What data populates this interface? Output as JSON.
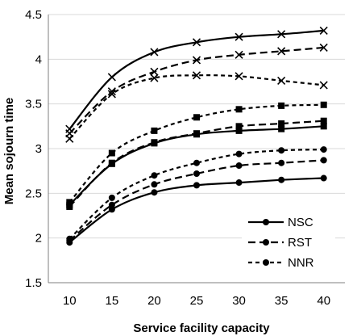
{
  "chart_data": {
    "type": "line",
    "xlabel": "Service facility capacity",
    "ylabel": "Mean sojourn time",
    "x": [
      10,
      15,
      20,
      25,
      30,
      35,
      40
    ],
    "xlim": [
      7.5,
      42.5
    ],
    "ylim": [
      1.5,
      4.5
    ],
    "yticks": [
      "1.5",
      "2",
      "2.5",
      "3",
      "3.5",
      "4",
      "4.5"
    ],
    "xticks": [
      "10",
      "15",
      "20",
      "25",
      "30",
      "35",
      "40"
    ],
    "grid": "horizontal",
    "legend_position": "bottom-right",
    "legend": [
      {
        "label": "NSC",
        "style": "solid"
      },
      {
        "label": "RST",
        "style": "dashed"
      },
      {
        "label": "NNR",
        "style": "dotted"
      }
    ],
    "series": [
      {
        "style": "solid",
        "marker": "circle",
        "values": [
          1.95,
          2.32,
          2.51,
          2.59,
          2.62,
          2.65,
          2.67
        ]
      },
      {
        "style": "dashed",
        "marker": "circle",
        "values": [
          1.97,
          2.37,
          2.6,
          2.72,
          2.81,
          2.84,
          2.87
        ]
      },
      {
        "style": "dotted",
        "marker": "circle",
        "values": [
          1.99,
          2.45,
          2.7,
          2.84,
          2.94,
          2.98,
          2.99
        ]
      },
      {
        "style": "solid",
        "marker": "square",
        "values": [
          2.37,
          2.83,
          3.06,
          3.16,
          3.2,
          3.22,
          3.25
        ]
      },
      {
        "style": "dashed",
        "marker": "square",
        "values": [
          2.35,
          2.84,
          3.07,
          3.17,
          3.25,
          3.28,
          3.31
        ]
      },
      {
        "style": "dotted",
        "marker": "square",
        "values": [
          2.4,
          2.95,
          3.2,
          3.35,
          3.44,
          3.48,
          3.49
        ]
      },
      {
        "style": "solid",
        "marker": "x",
        "values": [
          3.22,
          3.8,
          4.08,
          4.19,
          4.25,
          4.28,
          4.32
        ]
      },
      {
        "style": "dashed",
        "marker": "x",
        "values": [
          3.17,
          3.64,
          3.86,
          3.99,
          4.05,
          4.09,
          4.13
        ]
      },
      {
        "style": "dotted",
        "marker": "x",
        "values": [
          3.11,
          3.61,
          3.79,
          3.82,
          3.81,
          3.76,
          3.71
        ]
      }
    ]
  }
}
